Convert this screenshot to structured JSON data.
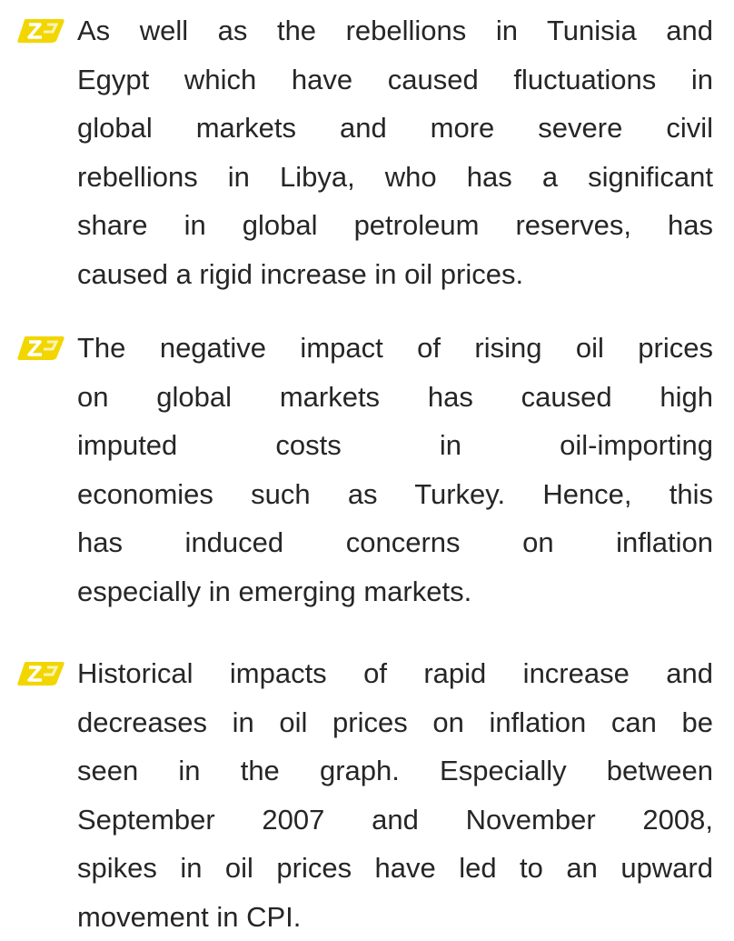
{
  "bullets": [
    {
      "lines": [
        "As well as the rebellions in Tunisia and",
        "Egypt which have caused fluctuations in",
        "global markets and more severe civil",
        "rebellions in Libya, who has a significant",
        "share in global petroleum reserves, has",
        "caused a rigid increase in oil prices."
      ]
    },
    {
      "lines": [
        "The negative impact of rising oil prices",
        "on global markets has caused high",
        "imputed costs in oil-importing",
        "economies such as Turkey. Hence, this",
        "has induced concerns on inflation",
        "especially in emerging markets."
      ]
    },
    {
      "lines": [
        "Historical impacts of rapid increase and",
        "decreases in oil prices on inflation can be",
        "seen in the graph. Especially between",
        "September 2007 and November 2008,",
        "spikes in oil prices have led to an upward",
        "movement in CPI."
      ]
    }
  ]
}
